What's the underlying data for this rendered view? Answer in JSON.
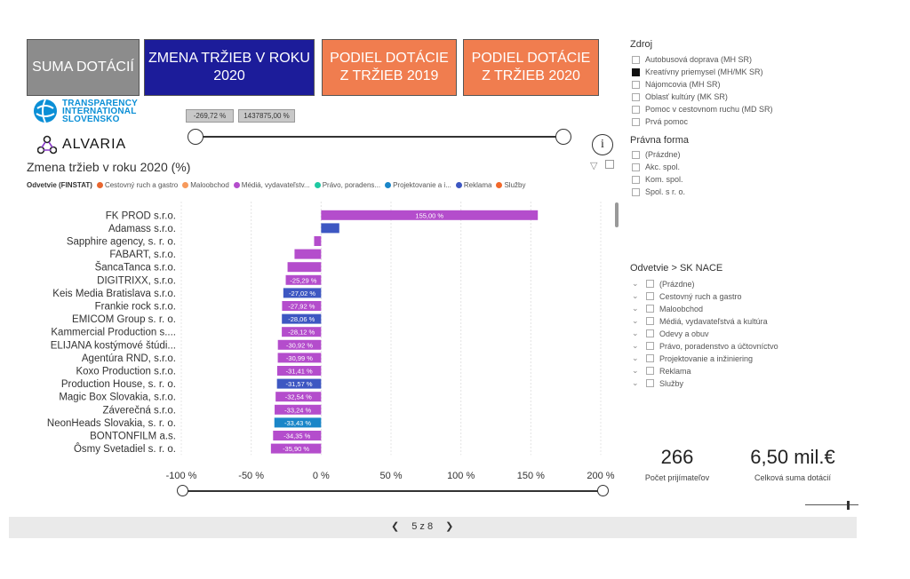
{
  "nav": {
    "btn1": "SUMA DOTÁCIÍ",
    "btn2": "ZMENA TRŽIEB V ROKU 2020",
    "btn3": "PODIEL DOTÁCIE Z TRŽIEB 2019",
    "btn4": "PODIEL DOTÁCIE Z TRŽIEB 2020",
    "colors": {
      "btn1": "#8c8c8c",
      "btn2": "#1c1c9a",
      "btn3": "#f07d4f",
      "btn4": "#f07d4f"
    }
  },
  "logos": {
    "ti_line1": "TRANSPARENCY",
    "ti_line2": "INTERNATIONAL",
    "ti_line3": "SLOVENSKO",
    "alvaria": "ALVARIA"
  },
  "range_slider_top": {
    "min_label": "-269,72 %",
    "max_label": "1437875,00 %"
  },
  "chart_title": "Zmena tržieb v roku 2020 (%)",
  "legend": {
    "title": "Odvetvie (FINSTAT)",
    "items": [
      {
        "label": "Cestovný ruch a gastro",
        "color": "#e8662f"
      },
      {
        "label": "Maloobchod",
        "color": "#f79a5c"
      },
      {
        "label": "Médiá, vydavateľstv...",
        "color": "#b44dcc"
      },
      {
        "label": "Právo, poradens...",
        "color": "#1ec9a2"
      },
      {
        "label": "Projektovanie a i...",
        "color": "#1a86c8"
      },
      {
        "label": "Reklama",
        "color": "#3d57c2"
      },
      {
        "label": "Služby",
        "color": "#f2682a"
      }
    ]
  },
  "chart_data": {
    "type": "bar",
    "orientation": "horizontal",
    "title": "Zmena tržieb v roku 2020 (%)",
    "xlim": [
      -100,
      200
    ],
    "xticks": [
      "-100 %",
      "-50 %",
      "0 %",
      "50 %",
      "100 %",
      "150 %",
      "200 %"
    ],
    "tick_values": [
      -100,
      -50,
      0,
      50,
      100,
      150,
      200
    ],
    "categories": [
      "FK PROD s.r.o.",
      "Adamass s.r.o.",
      "Sapphire agency, s. r. o.",
      "FABART, s.r.o.",
      "ŠancaTanca s.r.o.",
      "DIGITRIXX, s.r.o.",
      "Keis Media Bratislava s.r.o.",
      "Frankie rock s.r.o.",
      "EMICOM Group s. r. o.",
      "Kammercial Production s....",
      "ELIJANA kostýmové štúdi...",
      "Agentúra RND, s.r.o.",
      "Koxo Production s.r.o.",
      "Production House, s. r. o.",
      "Magic Box Slovakia, s.r.o.",
      "Záverečná s.r.o.",
      "NeonHeads Slovakia, s. r. o.",
      "BONTONFILM a.s.",
      "Ôsmy Svetadiel s. r. o."
    ],
    "values": [
      155,
      13,
      -5,
      -19,
      -24,
      -25.29,
      -27.02,
      -27.92,
      -28.06,
      -28.12,
      -30.92,
      -30.99,
      -31.41,
      -31.57,
      -32.54,
      -33.24,
      -33.43,
      -34.35,
      -35.9
    ],
    "labels": [
      "155,00 %",
      "",
      "",
      "",
      "",
      "-25,29 %",
      "-27,02 %",
      "-27,92 %",
      "-28,06 %",
      "-28,12 %",
      "-30,92 %",
      "-30,99 %",
      "-31,41 %",
      "-31,57 %",
      "-32,54 %",
      "-33,24 %",
      "-33,43 %",
      "-34,35 %",
      "-35,90 %"
    ],
    "colors": [
      "#b44dcc",
      "#3d57c2",
      "#b44dcc",
      "#b44dcc",
      "#b44dcc",
      "#b44dcc",
      "#3d57c2",
      "#b44dcc",
      "#3d57c2",
      "#b44dcc",
      "#b44dcc",
      "#b44dcc",
      "#b44dcc",
      "#3d57c2",
      "#b44dcc",
      "#b44dcc",
      "#1a86c8",
      "#b44dcc",
      "#b44dcc"
    ]
  },
  "slicers": {
    "zdroj": {
      "title": "Zdroj",
      "items": [
        {
          "label": "Autobusová doprava (MH SR)",
          "checked": false
        },
        {
          "label": "Kreatívny priemysel (MH/MK SR)",
          "checked": true
        },
        {
          "label": "Nájomcovia (MH SR)",
          "checked": false
        },
        {
          "label": "Oblasť kultúry (MK SR)",
          "checked": false
        },
        {
          "label": "Pomoc v cestovnom ruchu (MD SR)",
          "checked": false
        },
        {
          "label": "Prvá pomoc",
          "checked": false
        }
      ]
    },
    "pravna_forma": {
      "title": "Právna forma",
      "items": [
        {
          "label": "(Prázdne)"
        },
        {
          "label": "Akc. spol."
        },
        {
          "label": "Kom. spol."
        },
        {
          "label": "Spol. s r. o."
        }
      ]
    },
    "odvetvie": {
      "title": "Odvetvie > SK NACE",
      "items": [
        {
          "label": "(Prázdne)"
        },
        {
          "label": "Cestovný ruch a gastro"
        },
        {
          "label": "Maloobchod"
        },
        {
          "label": "Médiá, vydavateľstvá a kultúra"
        },
        {
          "label": "Odevy a obuv"
        },
        {
          "label": "Právo, poradenstvo a účtovníctvo"
        },
        {
          "label": "Projektovanie a inžiniering"
        },
        {
          "label": "Reklama"
        },
        {
          "label": "Služby"
        }
      ]
    }
  },
  "kpis": {
    "count_value": "266",
    "count_label": "Počet prijímateľov",
    "sum_value": "6,50 mil.€",
    "sum_label": "Celková suma dotácií"
  },
  "pager": {
    "text": "5 z 8"
  }
}
